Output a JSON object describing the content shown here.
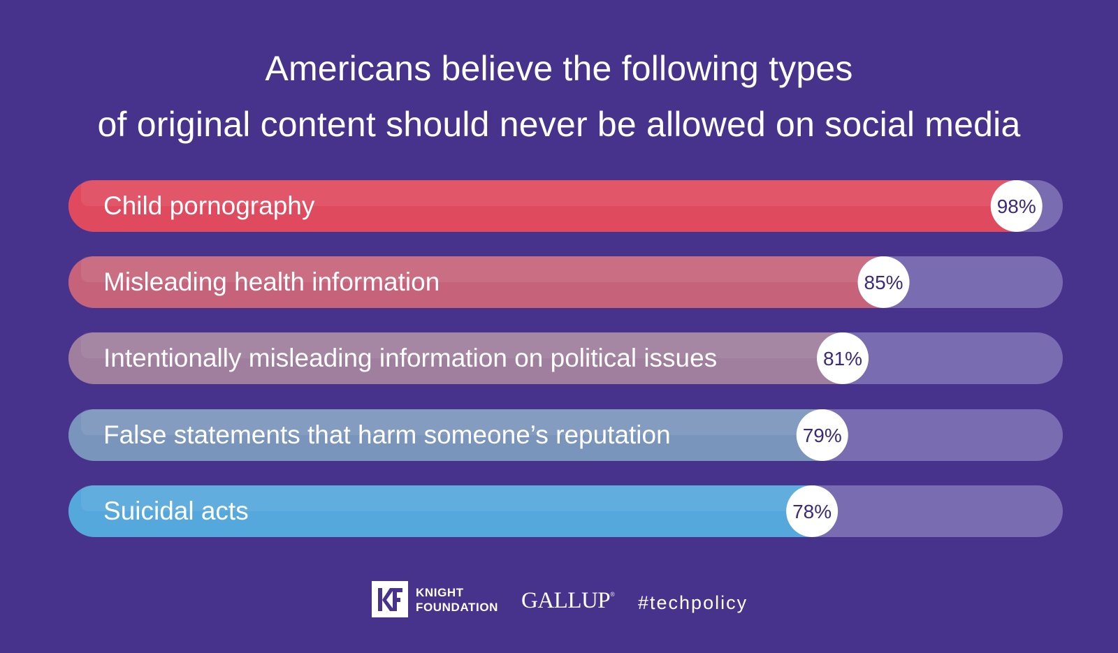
{
  "title": {
    "line1": "Americans believe the following types",
    "line2": "of original content should never be allowed on social media"
  },
  "chart_data": {
    "type": "bar",
    "orientation": "horizontal",
    "categories": [
      "Child pornography",
      "Misleading health information",
      "Intentionally misleading information on political issues",
      "False statements that harm someone’s reputation",
      "Suicidal acts"
    ],
    "values": [
      98,
      85,
      81,
      79,
      78
    ],
    "value_labels": [
      "98%",
      "85%",
      "81%",
      "79%",
      "78%"
    ],
    "unit": "%",
    "xlim": [
      0,
      100
    ],
    "bar_colors": [
      "#e04a5e",
      "#c6637a",
      "#a07e9d",
      "#7a95bb",
      "#55a8dc"
    ],
    "track_color": "#7a6cb0",
    "badge_text_color": "#3b2a7a"
  },
  "footer": {
    "logo_mark": "KF",
    "org_line1": "KNIGHT",
    "org_line2": "FOUNDATION",
    "gallup": "GALLUP",
    "gallup_mark": "®",
    "hashtag": "#techpolicy"
  }
}
